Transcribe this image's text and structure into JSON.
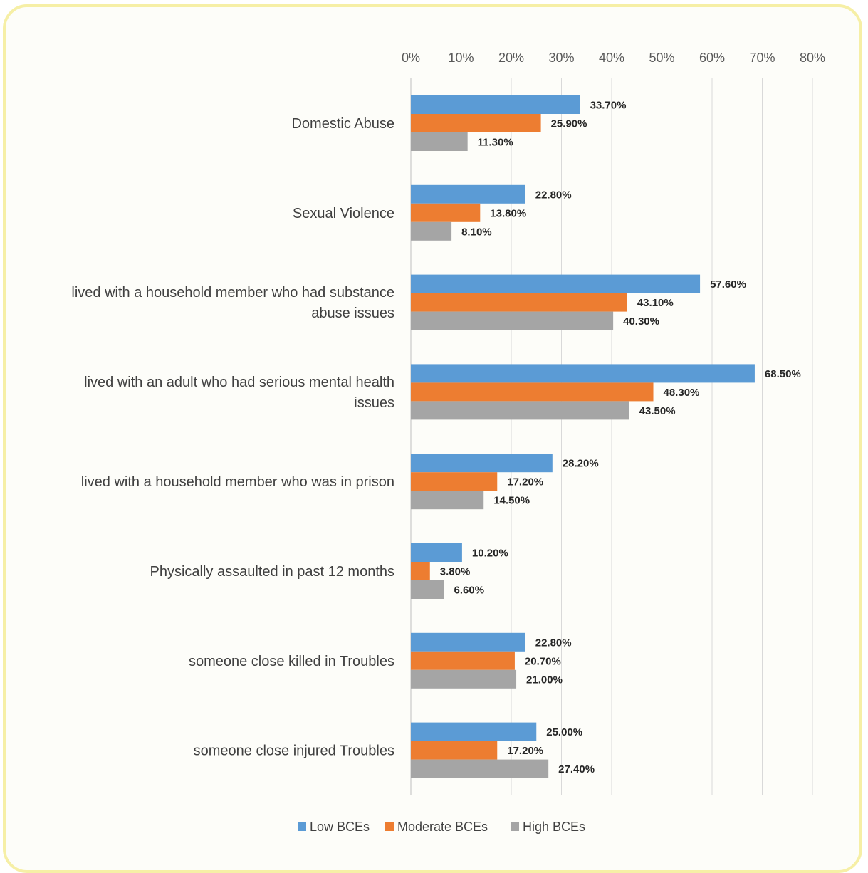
{
  "chart_data": {
    "type": "bar",
    "orientation": "horizontal",
    "title": "",
    "xlabel": "",
    "ylabel": "",
    "xlim": [
      0,
      80
    ],
    "x_ticks": [
      "0%",
      "10%",
      "20%",
      "30%",
      "40%",
      "50%",
      "60%",
      "70%",
      "80%"
    ],
    "grid": true,
    "legend_position": "bottom",
    "categories": [
      [
        "Domestic Abuse"
      ],
      [
        "Sexual Violence"
      ],
      [
        "lived with a household member who had substance",
        "abuse issues"
      ],
      [
        "lived with an adult who had serious mental health",
        "issues"
      ],
      [
        "lived with a household member who was in prison"
      ],
      [
        "Physically assaulted in past 12 months"
      ],
      [
        "someone close killed in Troubles"
      ],
      [
        "someone close injured Troubles"
      ]
    ],
    "series": [
      {
        "name": "Low BCEs",
        "color": "#5b9bd5",
        "values": [
          33.7,
          22.8,
          57.6,
          68.5,
          28.2,
          10.2,
          22.8,
          25.0
        ],
        "labels": [
          "33.70%",
          "22.80%",
          "57.60%",
          "68.50%",
          "28.20%",
          "10.20%",
          "22.80%",
          "25.00%"
        ]
      },
      {
        "name": "Moderate BCEs",
        "color": "#ed7d31",
        "values": [
          25.9,
          13.8,
          43.1,
          48.3,
          17.2,
          3.8,
          20.7,
          17.2
        ],
        "labels": [
          "25.90%",
          "13.80%",
          "43.10%",
          "48.30%",
          "17.20%",
          "3.80%",
          "20.70%",
          "17.20%"
        ]
      },
      {
        "name": "High BCEs",
        "color": "#a5a5a5",
        "values": [
          11.3,
          8.1,
          40.3,
          43.5,
          14.5,
          6.6,
          21.0,
          27.4
        ],
        "labels": [
          "11.30%",
          "8.10%",
          "40.30%",
          "43.50%",
          "14.50%",
          "6.60%",
          "21.00%",
          "27.40%"
        ]
      }
    ]
  }
}
